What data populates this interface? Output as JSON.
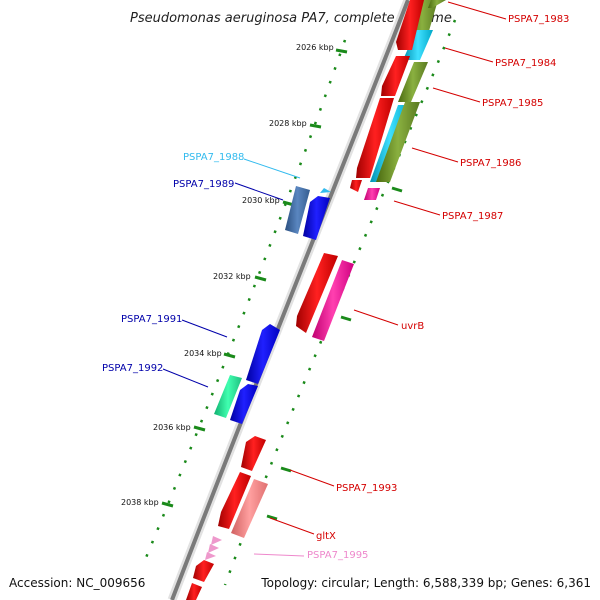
{
  "title": "Pseudomonas aeruginosa PA7, complete genome",
  "footer": {
    "accession": "Accession: NC_009656",
    "summary": "Topology: circular; Length: 6,588,339 bp; Genes: 6,361"
  },
  "ticks": [
    "2026 kbp",
    "2028 kbp",
    "2030 kbp",
    "2032 kbp",
    "2034 kbp",
    "2036 kbp",
    "2038 kbp"
  ],
  "genes": [
    {
      "name": "PSPA7_1983",
      "color": "#d40000"
    },
    {
      "name": "PSPA7_1984",
      "color": "#d40000"
    },
    {
      "name": "PSPA7_1985",
      "color": "#d40000"
    },
    {
      "name": "PSPA7_1986",
      "color": "#d40000"
    },
    {
      "name": "PSPA7_1987",
      "color": "#d40000"
    },
    {
      "name": "PSPA7_1988",
      "color": "#33bbee"
    },
    {
      "name": "PSPA7_1989",
      "color": "#0000aa"
    },
    {
      "name": "uvrB",
      "color": "#d40000"
    },
    {
      "name": "PSPA7_1991",
      "color": "#0000aa"
    },
    {
      "name": "PSPA7_1992",
      "color": "#0000aa"
    },
    {
      "name": "PSPA7_1993",
      "color": "#d40000"
    },
    {
      "name": "gltX",
      "color": "#d40000"
    },
    {
      "name": "PSPA7_1995",
      "color": "#ee88cc"
    }
  ]
}
